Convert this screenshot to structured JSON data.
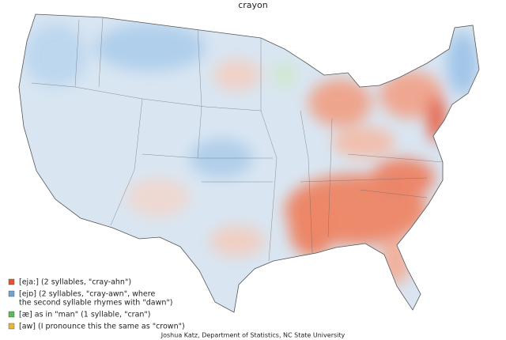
{
  "title": "crayon",
  "legend": {
    "items": [
      {
        "color": "#e8502e",
        "lines": [
          "[eja:] (2 syllables, \"cray-ahn\")"
        ]
      },
      {
        "color": "#6fa3d4",
        "lines": [
          "[ejɒ] (2 syllables, \"cray-awn\", where",
          "the second syllable rhymes with \"dawn\")"
        ]
      },
      {
        "color": "#5cb85c",
        "lines": [
          "[æ] as in \"man\" (1 syllable, \"cran\")"
        ]
      },
      {
        "color": "#e8b830",
        "lines": [
          "[aw] (I pronounce this the same as \"crown\")"
        ]
      }
    ]
  },
  "credit": "Joshua Katz, Department of Statistics, NC State University"
}
